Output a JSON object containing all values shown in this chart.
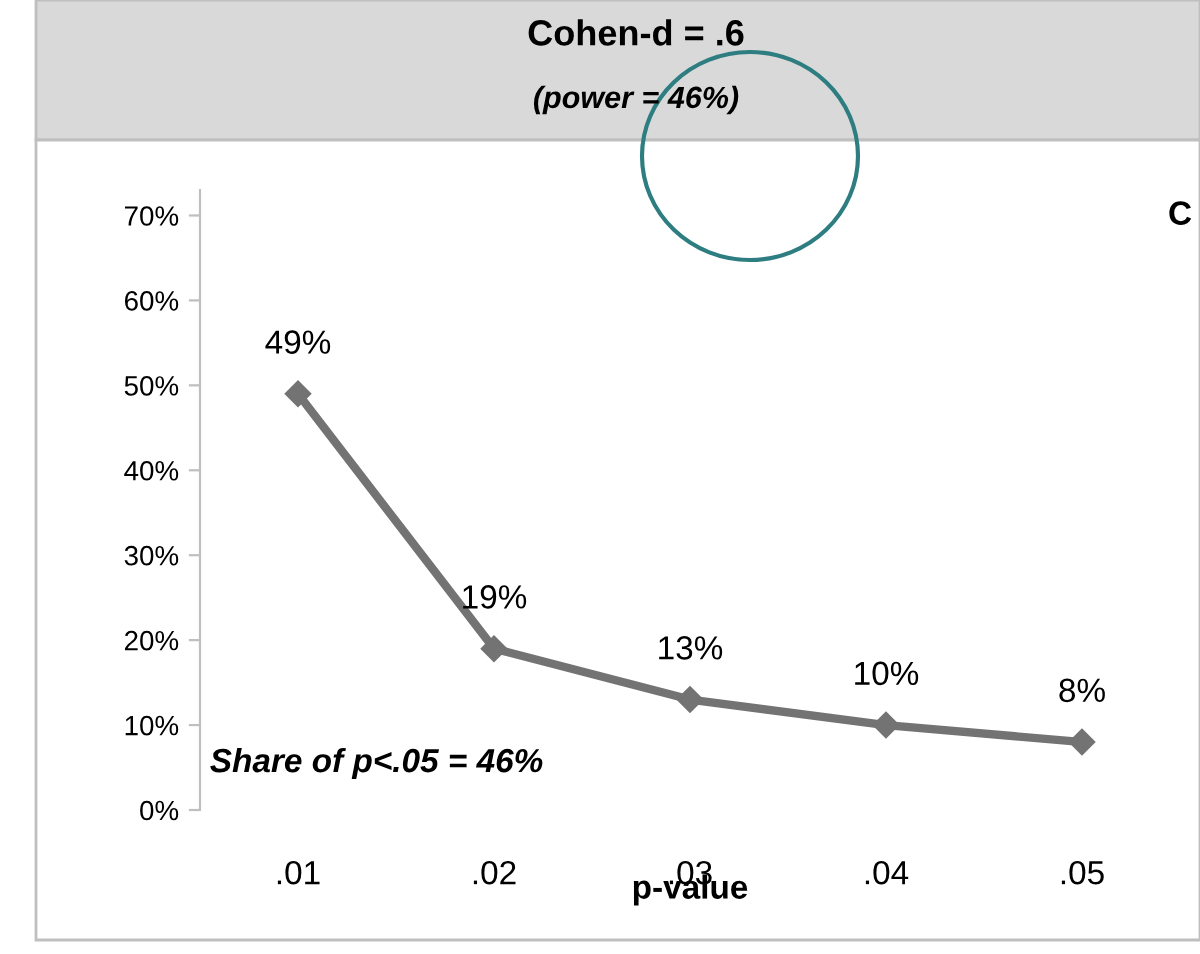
{
  "chart_data": {
    "type": "line",
    "title": "Cohen-d = .6",
    "subtitle": "(power = 46%)",
    "xlabel": "p-value",
    "categories": [
      ".01",
      ".02",
      ".03",
      ".04",
      ".05"
    ],
    "series": [
      {
        "color": "#737373",
        "values": [
          49,
          19,
          13,
          10,
          8
        ],
        "value_labels": [
          "49%",
          "19%",
          "13%",
          "10%",
          "8%"
        ]
      }
    ],
    "ylim": [
      0,
      73
    ],
    "yticks": [
      {
        "value": 0,
        "label": "0%"
      },
      {
        "value": 10,
        "label": "10%"
      },
      {
        "value": 20,
        "label": "20%"
      },
      {
        "value": 30,
        "label": "30%"
      },
      {
        "value": 40,
        "label": "40%"
      },
      {
        "value": 50,
        "label": "50%"
      },
      {
        "value": 60,
        "label": "60%"
      },
      {
        "value": 70,
        "label": "70%"
      }
    ],
    "marker": "diamond",
    "line_style": "solid",
    "grid": false,
    "legend": false,
    "annotations": [
      "Share of p<.05 = 46%",
      "C"
    ]
  }
}
